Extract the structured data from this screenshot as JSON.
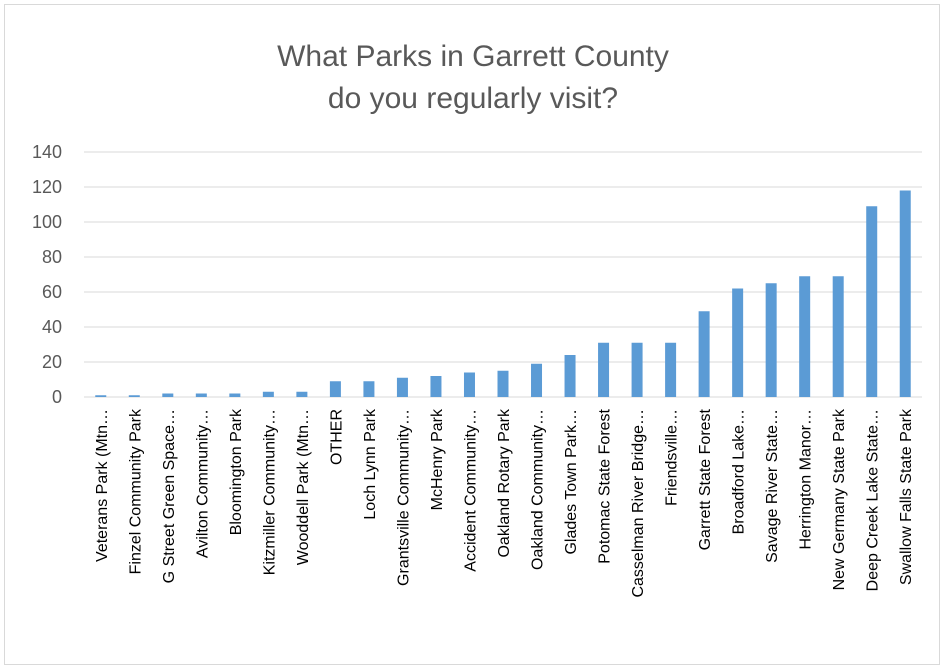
{
  "chart_data": {
    "type": "bar",
    "title_lines": [
      "What Parks in Garrett County",
      "do you regularly visit?"
    ],
    "xlabel": "",
    "ylabel": "",
    "ylim": [
      0,
      140
    ],
    "yticks": [
      0,
      20,
      40,
      60,
      80,
      100,
      120,
      140
    ],
    "grid": true,
    "legend": "none",
    "bar_color": "#5b9bd5",
    "categories": [
      "Veterans Park (Mtn…",
      "Finzel Community Park",
      "G Street Green Space…",
      "Avilton Community…",
      "Bloomington Park",
      "Kitzmiller Community…",
      "Wooddell Park (Mtn…",
      "OTHER",
      "Loch Lynn Park",
      "Grantsville Community…",
      "McHenry Park",
      "Accident Community…",
      "Oakland Rotary Park",
      "Oakland Community…",
      "Glades Town Park…",
      "Potomac State Forest",
      "Casselman River Bridge…",
      "Friendsville…",
      "Garrett State Forest",
      "Broadford Lake…",
      "Savage River State…",
      "Herrington Manor…",
      "New Germany State Park",
      "Deep Creek Lake State…",
      "Swallow Falls State Park"
    ],
    "values": [
      1,
      1,
      2,
      2,
      2,
      3,
      3,
      9,
      9,
      11,
      12,
      14,
      15,
      19,
      24,
      31,
      31,
      31,
      49,
      62,
      65,
      69,
      69,
      109,
      118
    ]
  }
}
